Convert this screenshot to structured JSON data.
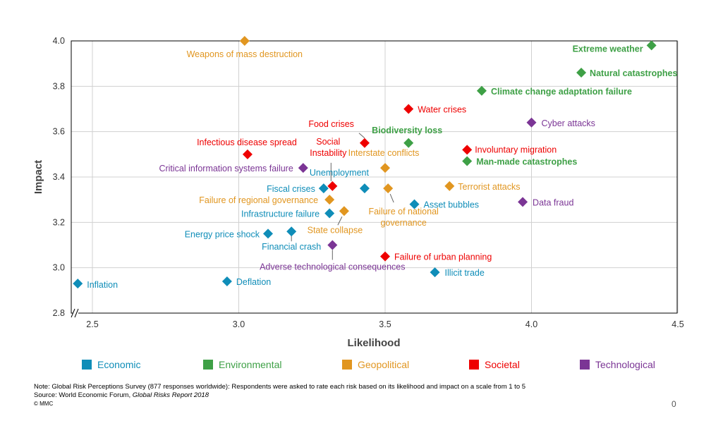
{
  "chart_data": {
    "type": "scatter",
    "title": "",
    "xlabel": "Likelihood",
    "ylabel": "Impact",
    "xlim": [
      2.42,
      4.5
    ],
    "ylim": [
      2.8,
      4.0
    ],
    "x_ticks": [
      "2.5",
      "3.0",
      "3.5",
      "4.0",
      "4.5"
    ],
    "y_ticks": [
      "2.8",
      "3.0",
      "3.2",
      "3.4",
      "3.6",
      "3.8",
      "4.0"
    ],
    "axis_break": "x",
    "grid": true,
    "legend_position": "bottom",
    "categories": [
      {
        "name": "Economic",
        "color": "#0F8DB8"
      },
      {
        "name": "Environmental",
        "color": "#3EA046"
      },
      {
        "name": "Geopolitical",
        "color": "#E19620"
      },
      {
        "name": "Societal",
        "color": "#EE0000"
      },
      {
        "name": "Technological",
        "color": "#7B3595"
      }
    ],
    "points": [
      {
        "label": "Weapons of mass destruction",
        "category": "Geopolitical",
        "x": 3.02,
        "y": 4.0
      },
      {
        "label": "Extreme weather",
        "category": "Environmental",
        "x": 4.41,
        "y": 3.98
      },
      {
        "label": "Natural catastrophes",
        "category": "Environmental",
        "x": 4.17,
        "y": 3.86
      },
      {
        "label": "Climate change adaptation failure",
        "category": "Environmental",
        "x": 3.83,
        "y": 3.78
      },
      {
        "label": "Water crises",
        "category": "Societal",
        "x": 3.58,
        "y": 3.7
      },
      {
        "label": "Cyber attacks",
        "category": "Technological",
        "x": 4.0,
        "y": 3.64
      },
      {
        "label": "Food crises",
        "category": "Societal",
        "x": 3.43,
        "y": 3.55
      },
      {
        "label": "Biodiversity loss",
        "category": "Environmental",
        "x": 3.58,
        "y": 3.55
      },
      {
        "label": "Infectious disease spread",
        "category": "Societal",
        "x": 3.03,
        "y": 3.5
      },
      {
        "label": "Involuntary migration",
        "category": "Societal",
        "x": 3.78,
        "y": 3.52
      },
      {
        "label": "Interstate conflicts",
        "category": "Geopolitical",
        "x": 3.5,
        "y": 3.44
      },
      {
        "label": "Man-made catastrophes",
        "category": "Environmental",
        "x": 3.78,
        "y": 3.47
      },
      {
        "label": "Critical information systems failure",
        "category": "Technological",
        "x": 3.22,
        "y": 3.44
      },
      {
        "label": "Social Instability",
        "category": "Societal",
        "x": 3.32,
        "y": 3.36
      },
      {
        "label": "Unemployment",
        "category": "Economic",
        "x": 3.43,
        "y": 3.35
      },
      {
        "label": "Fiscal crises",
        "category": "Economic",
        "x": 3.29,
        "y": 3.35
      },
      {
        "label": "Failure of national governance",
        "category": "Geopolitical",
        "x": 3.51,
        "y": 3.35
      },
      {
        "label": "Terrorist attacks",
        "category": "Geopolitical",
        "x": 3.72,
        "y": 3.36
      },
      {
        "label": "Failure of regional governance",
        "category": "Geopolitical",
        "x": 3.31,
        "y": 3.3
      },
      {
        "label": "Asset bubbles",
        "category": "Economic",
        "x": 3.6,
        "y": 3.28
      },
      {
        "label": "Data fraud",
        "category": "Technological",
        "x": 3.97,
        "y": 3.29
      },
      {
        "label": "Infrastructure failure",
        "category": "Economic",
        "x": 3.31,
        "y": 3.24
      },
      {
        "label": "State collapse",
        "category": "Geopolitical",
        "x": 3.36,
        "y": 3.25
      },
      {
        "label": "Energy price shock",
        "category": "Economic",
        "x": 3.1,
        "y": 3.15
      },
      {
        "label": "Financial crash",
        "category": "Economic",
        "x": 3.18,
        "y": 3.16
      },
      {
        "label": "Adverse technological consequences",
        "category": "Technological",
        "x": 3.32,
        "y": 3.1
      },
      {
        "label": "Failure of urban planning",
        "category": "Societal",
        "x": 3.5,
        "y": 3.05
      },
      {
        "label": "Illicit trade",
        "category": "Economic",
        "x": 3.67,
        "y": 2.98
      },
      {
        "label": "Inflation",
        "category": "Economic",
        "x": 2.45,
        "y": 2.93
      },
      {
        "label": "Deflation",
        "category": "Economic",
        "x": 2.96,
        "y": 2.94
      }
    ]
  },
  "notes": {
    "note": "Note: Global Risk Perceptions Survey (877 responses worldwide): Respondents were asked to rate each risk based on its likelihood and impact on a scale from 1 to 5",
    "source_prefix": "Source: World Economic Forum, ",
    "source_title": "Global Risks Report 2018",
    "copyright": "© MMC"
  },
  "page_number": "0"
}
